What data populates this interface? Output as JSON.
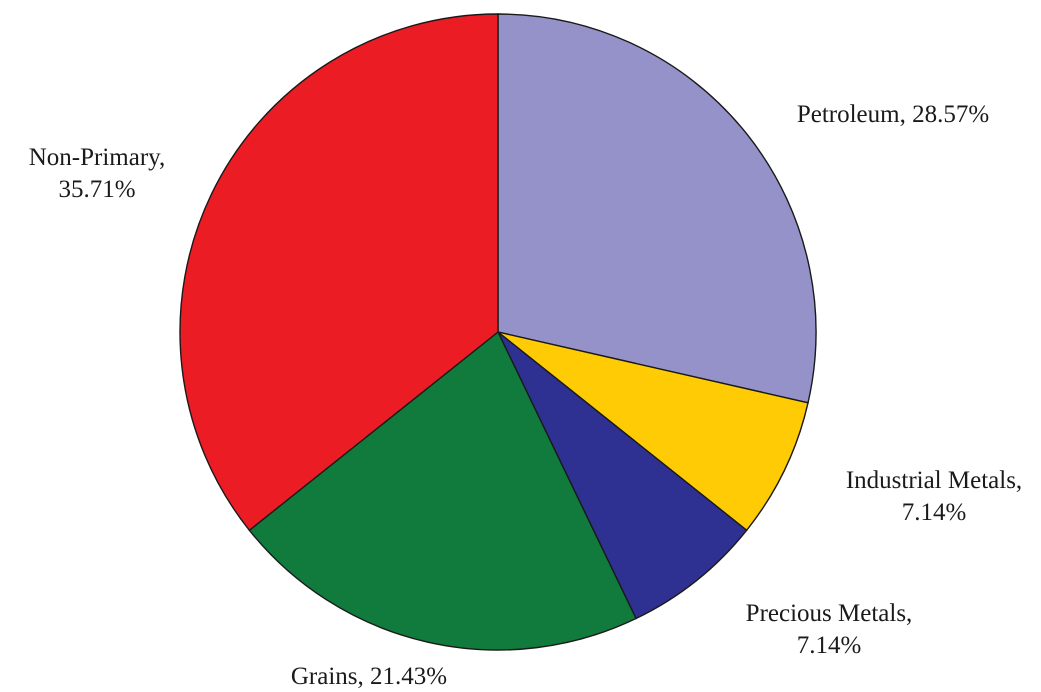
{
  "chart_data": {
    "type": "pie",
    "title": "",
    "slices": [
      {
        "label": "Petroleum, 28.57%",
        "label_lines": [
          "Petroleum, 28.57%"
        ],
        "value": 28.57,
        "color": "#9592c9"
      },
      {
        "label": "Industrial Metals, 7.14%",
        "label_lines": [
          "Industrial Metals,",
          "7.14%"
        ],
        "value": 7.14,
        "color": "#ffcb05"
      },
      {
        "label": "Precious Metals, 7.14%",
        "label_lines": [
          "Precious Metals,",
          "7.14%"
        ],
        "value": 7.14,
        "color": "#2e3192"
      },
      {
        "label": "Grains, 21.43%",
        "label_lines": [
          "Grains, 21.43%"
        ],
        "value": 21.43,
        "color": "#107b3c"
      },
      {
        "label": "Non-Primary, 35.71%",
        "label_lines": [
          "Non-Primary,",
          "35.71%"
        ],
        "value": 35.71,
        "color": "#ec1c24"
      }
    ],
    "start_angle": "12 o'clock",
    "direction": "clockwise",
    "legend": "none"
  }
}
